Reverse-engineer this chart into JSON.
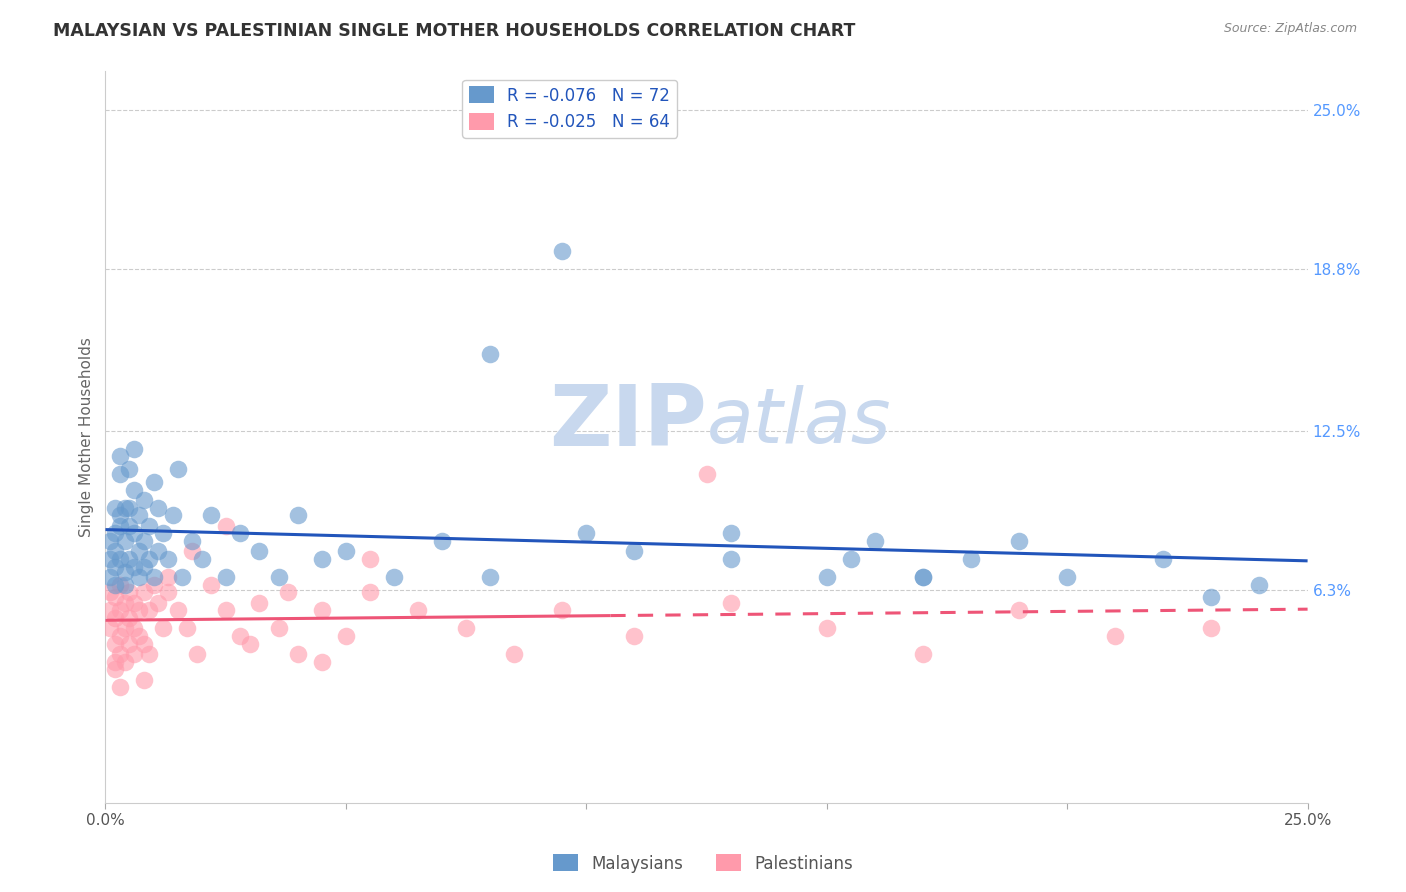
{
  "title": "MALAYSIAN VS PALESTINIAN SINGLE MOTHER HOUSEHOLDS CORRELATION CHART",
  "source": "Source: ZipAtlas.com",
  "ylabel": "Single Mother Households",
  "legend_label1": "Malaysians",
  "legend_label2": "Palestinians",
  "r1": -0.076,
  "n1": 72,
  "r2": -0.025,
  "n2": 64,
  "xmin": 0.0,
  "xmax": 0.25,
  "ymin": -0.02,
  "ymax": 0.265,
  "ytick_vals": [
    0.063,
    0.125,
    0.188,
    0.25
  ],
  "right_ytick_labels": [
    "6.3%",
    "12.5%",
    "18.8%",
    "25.0%"
  ],
  "xticks": [
    0.0,
    0.05,
    0.1,
    0.15,
    0.2,
    0.25
  ],
  "xtick_labels": [
    "0.0%",
    "",
    "",
    "",
    "",
    "25.0%"
  ],
  "blue_color": "#6699CC",
  "pink_color": "#FF9AAB",
  "line_blue": "#2255BB",
  "line_pink": "#EE5577",
  "title_color": "#333333",
  "axis_label_color": "#666666",
  "right_tick_color": "#5599FF",
  "watermark_zip_color": "#C8D8EE",
  "watermark_atlas_color": "#C8D8EE",
  "malaysians_x": [
    0.001,
    0.001,
    0.001,
    0.002,
    0.002,
    0.002,
    0.002,
    0.002,
    0.003,
    0.003,
    0.003,
    0.003,
    0.003,
    0.004,
    0.004,
    0.004,
    0.004,
    0.005,
    0.005,
    0.005,
    0.005,
    0.006,
    0.006,
    0.006,
    0.006,
    0.007,
    0.007,
    0.007,
    0.008,
    0.008,
    0.008,
    0.009,
    0.009,
    0.01,
    0.01,
    0.011,
    0.011,
    0.012,
    0.013,
    0.014,
    0.015,
    0.016,
    0.018,
    0.02,
    0.022,
    0.025,
    0.028,
    0.032,
    0.036,
    0.04,
    0.045,
    0.05,
    0.06,
    0.07,
    0.08,
    0.095,
    0.11,
    0.13,
    0.155,
    0.17,
    0.19,
    0.22,
    0.24,
    0.08,
    0.1,
    0.13,
    0.15,
    0.16,
    0.17,
    0.18,
    0.2,
    0.23
  ],
  "malaysians_y": [
    0.082,
    0.075,
    0.068,
    0.095,
    0.078,
    0.085,
    0.072,
    0.065,
    0.108,
    0.092,
    0.088,
    0.075,
    0.115,
    0.095,
    0.07,
    0.082,
    0.065,
    0.11,
    0.095,
    0.075,
    0.088,
    0.102,
    0.085,
    0.072,
    0.118,
    0.092,
    0.078,
    0.068,
    0.098,
    0.082,
    0.072,
    0.088,
    0.075,
    0.105,
    0.068,
    0.095,
    0.078,
    0.085,
    0.075,
    0.092,
    0.11,
    0.068,
    0.082,
    0.075,
    0.092,
    0.068,
    0.085,
    0.078,
    0.068,
    0.092,
    0.075,
    0.078,
    0.068,
    0.082,
    0.068,
    0.195,
    0.078,
    0.085,
    0.075,
    0.068,
    0.082,
    0.075,
    0.065,
    0.155,
    0.085,
    0.075,
    0.068,
    0.082,
    0.068,
    0.075,
    0.068,
    0.06
  ],
  "palestinians_x": [
    0.001,
    0.001,
    0.001,
    0.002,
    0.002,
    0.002,
    0.002,
    0.003,
    0.003,
    0.003,
    0.003,
    0.004,
    0.004,
    0.004,
    0.005,
    0.005,
    0.005,
    0.006,
    0.006,
    0.006,
    0.007,
    0.007,
    0.008,
    0.008,
    0.009,
    0.009,
    0.01,
    0.011,
    0.012,
    0.013,
    0.015,
    0.017,
    0.019,
    0.022,
    0.025,
    0.028,
    0.032,
    0.036,
    0.04,
    0.045,
    0.05,
    0.055,
    0.065,
    0.075,
    0.085,
    0.095,
    0.11,
    0.13,
    0.15,
    0.17,
    0.19,
    0.21,
    0.23,
    0.002,
    0.003,
    0.008,
    0.013,
    0.018,
    0.025,
    0.03,
    0.038,
    0.045,
    0.055,
    0.125
  ],
  "palestinians_y": [
    0.055,
    0.048,
    0.062,
    0.052,
    0.042,
    0.06,
    0.035,
    0.065,
    0.055,
    0.045,
    0.038,
    0.058,
    0.048,
    0.035,
    0.062,
    0.052,
    0.042,
    0.058,
    0.048,
    0.038,
    0.055,
    0.045,
    0.062,
    0.042,
    0.055,
    0.038,
    0.065,
    0.058,
    0.048,
    0.062,
    0.055,
    0.048,
    0.038,
    0.065,
    0.055,
    0.045,
    0.058,
    0.048,
    0.038,
    0.055,
    0.045,
    0.062,
    0.055,
    0.048,
    0.038,
    0.055,
    0.045,
    0.058,
    0.048,
    0.038,
    0.055,
    0.045,
    0.048,
    0.032,
    0.025,
    0.028,
    0.068,
    0.078,
    0.088,
    0.042,
    0.062,
    0.035,
    0.075,
    0.108
  ]
}
